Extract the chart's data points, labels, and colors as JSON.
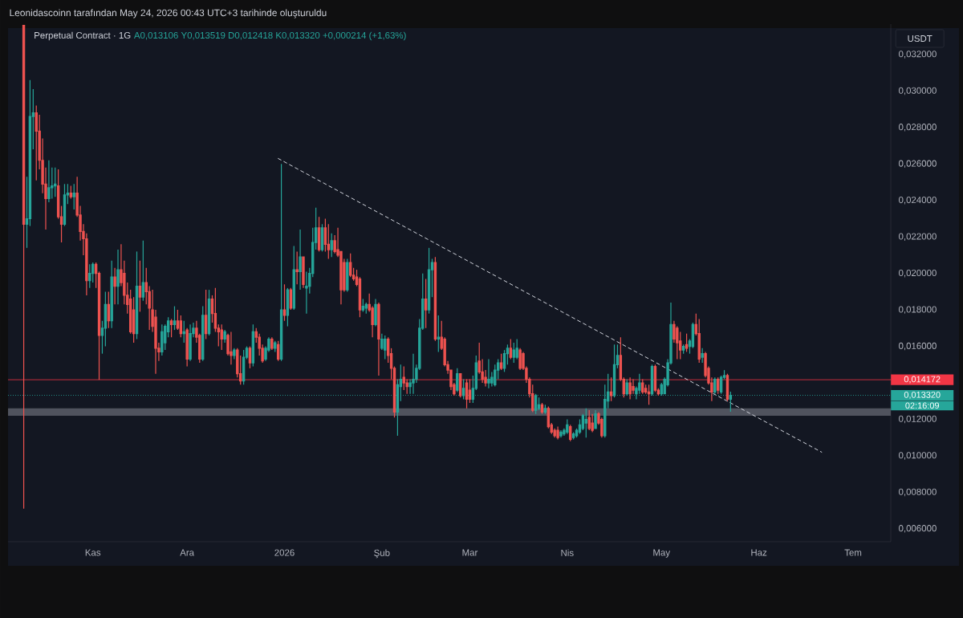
{
  "chart_data": {
    "type": "candlestick",
    "title": "Leonidascoinn tarafından May 24, 2026 00:43 UTC+3 tarihinde oluşturuldu",
    "subtitle": "Perpetual Contract · 1G",
    "ylabel": "USDT",
    "annotations": [
      "A0,013106 Y0,013519 D0,012418 K0,013320 +0,000214 (+1,63%)",
      "02:16:09"
    ],
    "colors": [
      "#ef5350",
      "#26a69a",
      "#26a69a",
      "#26a69a",
      "#ef5350",
      "#ef5350",
      "#ef5350",
      "#ef5350",
      "#26a69a",
      "#26a69a",
      "#26a69a",
      "#ef5350",
      "#ef5350",
      "#26a69a",
      "#26a69a",
      "#ef5350",
      "#26a69a",
      "#ef5350",
      "#ef5350",
      "#ef5350",
      "#ef5350",
      "#26a69a",
      "#26a69a",
      "#ef5350",
      "#ef5350",
      "#26a69a",
      "#26a69a",
      "#ef5350",
      "#26a69a",
      "#ef5350",
      "#26a69a",
      "#ef5350",
      "#ef5350",
      "#ef5350",
      "#ef5350",
      "#ef5350",
      "#26a69a",
      "#ef5350",
      "#26a69a",
      "#ef5350",
      "#ef5350",
      "#ef5350",
      "#ef5350",
      "#ef5350",
      "#26a69a",
      "#26a69a",
      "#26a69a",
      "#ef5350",
      "#26a69a",
      "#ef5350",
      "#ef5350",
      "#26a69a",
      "#ef5350",
      "#26a69a",
      "#26a69a",
      "#ef5350",
      "#ef5350",
      "#26a69a",
      "#ef5350",
      "#26a69a",
      "#ef5350",
      "#ef5350",
      "#ef5350",
      "#ef5350",
      "#26a69a",
      "#ef5350",
      "#ef5350",
      "#26a69a",
      "#ef5350",
      "#ef5350",
      "#26a69a",
      "#26a69a",
      "#ef5350",
      "#26a69a",
      "#ef5350",
      "#ef5350",
      "#ef5350",
      "#26a69a",
      "#26a69a",
      "#ef5350",
      "#26a69a",
      "#ef5350",
      "#26a69a",
      "#ef5350",
      "#26a69a",
      "#ef5350",
      "#26a69a",
      "#ef5350",
      "#26a69a",
      "#ef5350",
      "#26a69a",
      "#26a69a",
      "#26a69a",
      "#26a69a",
      "#ef5350",
      "#26a69a",
      "#ef5350",
      "#ef5350",
      "#26a69a",
      "#ef5350",
      "#ef5350",
      "#ef5350",
      "#ef5350",
      "#26a69a",
      "#ef5350",
      "#ef5350",
      "#ef5350",
      "#ef5350",
      "#26a69a",
      "#26a69a",
      "#ef5350",
      "#ef5350",
      "#26a69a",
      "#ef5350",
      "#26a69a",
      "#26a69a",
      "#ef5350",
      "#ef5350",
      "#ef5350",
      "#26a69a",
      "#26a69a",
      "#ef5350",
      "#ef5350",
      "#26a69a",
      "#26a69a",
      "#26a69a",
      "#26a69a",
      "#26a69a",
      "#ef5350",
      "#26a69a",
      "#26a69a",
      "#ef5350",
      "#26a69a",
      "#ef5350",
      "#ef5350",
      "#ef5350",
      "#ef5350",
      "#ef5350",
      "#26a69a",
      "#ef5350",
      "#26a69a",
      "#ef5350",
      "#ef5350",
      "#26a69a",
      "#26a69a",
      "#ef5350",
      "#ef5350",
      "#ef5350",
      "#26a69a",
      "#26a69a",
      "#26a69a",
      "#26a69a",
      "#ef5350",
      "#26a69a",
      "#26a69a",
      "#ef5350",
      "#26a69a",
      "#26a69a",
      "#ef5350",
      "#ef5350",
      "#ef5350",
      "#ef5350",
      "#ef5350",
      "#26a69a",
      "#26a69a",
      "#ef5350",
      "#26a69a",
      "#ef5350",
      "#ef5350",
      "#ef5350",
      "#ef5350",
      "#26a69a",
      "#26a69a",
      "#26a69a",
      "#ef5350",
      "#26a69a",
      "#26a69a",
      "#26a69a",
      "#26a69a",
      "#26a69a",
      "#ef5350",
      "#ef5350",
      "#26a69a",
      "#ef5350",
      "#ef5350",
      "#26a69a",
      "#26a69a",
      "#ef5350",
      "#26a69a",
      "#26a69a",
      "#ef5350",
      "#ef5350",
      "#26a69a",
      "#ef5350",
      "#ef5350",
      "#26a69a",
      "#26a69a",
      "#ef5350",
      "#ef5350",
      "#ef5350",
      "#26a69a",
      "#ef5350",
      "#ef5350",
      "#26a69a",
      "#26a69a",
      "#26a69a",
      "#26a69a",
      "#ef5350",
      "#ef5350",
      "#ef5350",
      "#26a69a",
      "#ef5350",
      "#26a69a",
      "#26a69a",
      "#ef5350",
      "#ef5350",
      "#26a69a",
      "#ef5350",
      "#ef5350",
      "#ef5350",
      "#26a69a",
      "#ef5350",
      "#26a69a",
      "#26a69a",
      "#ef5350",
      "#26a69a"
    ],
    "xlim": [
      "2025-10-05",
      "2026-07-13"
    ],
    "ylim": [
      0.00529,
      0.03367
    ],
    "xticks": [
      {
        "value": "2025-11-01",
        "label": "Kas"
      },
      {
        "value": "2025-12-01",
        "label": "Ara"
      },
      {
        "value": "2026-01-01",
        "label": "2026"
      },
      {
        "value": "2026-02-01",
        "label": "Şub"
      },
      {
        "value": "2026-03-01",
        "label": "Mar"
      },
      {
        "value": "2026-04-01",
        "label": "Nis"
      },
      {
        "value": "2026-05-01",
        "label": "May"
      },
      {
        "value": "2026-06-01",
        "label": "Haz"
      },
      {
        "value": "2026-07-01",
        "label": "Tem"
      }
    ],
    "yticks": [
      {
        "value": 0.006,
        "label": "0,006000"
      },
      {
        "value": 0.008,
        "label": "0,008000"
      },
      {
        "value": 0.01,
        "label": "0,010000"
      },
      {
        "value": 0.012,
        "label": "0,012000"
      },
      {
        "value": 0.016,
        "label": "0,016000"
      },
      {
        "value": 0.018,
        "label": "0,018000"
      },
      {
        "value": 0.02,
        "label": "0,020000"
      },
      {
        "value": 0.022,
        "label": "0,022000"
      },
      {
        "value": 0.024,
        "label": "0,024000"
      },
      {
        "value": 0.026,
        "label": "0,026000"
      },
      {
        "value": 0.028,
        "label": "0,028000"
      },
      {
        "value": 0.03,
        "label": "0,030000"
      },
      {
        "value": 0.032,
        "label": "0,032000"
      }
    ],
    "ref_lines": [
      {
        "axis": "y",
        "value": 0.014172,
        "label": "0,014172",
        "color": "#f23645",
        "line_style": "solid"
      },
      {
        "axis": "y",
        "value": 0.01332,
        "label": "0,013320",
        "color": "#26a69a",
        "line_style": "dotted"
      }
    ],
    "bands": [
      {
        "axis": "y",
        "from": 0.0122,
        "to": 0.0126,
        "color": "#50535e"
      }
    ],
    "series": [
      {
        "type": "line",
        "x": [
          "2025-12-30",
          "2026-06-21"
        ],
        "values": [
          0.0263,
          0.0102
        ],
        "color": "#d1d4dc",
        "line_style": "dashed"
      }
    ],
    "x": [
      "2025-10-10",
      "2025-10-11",
      "2025-10-12",
      "2025-10-13",
      "2025-10-14",
      "2025-10-15",
      "2025-10-16",
      "2025-10-17",
      "2025-10-18",
      "2025-10-19",
      "2025-10-20",
      "2025-10-21",
      "2025-10-22",
      "2025-10-23",
      "2025-10-24",
      "2025-10-25",
      "2025-10-26",
      "2025-10-27",
      "2025-10-28",
      "2025-10-29",
      "2025-10-30",
      "2025-10-31",
      "2025-11-01",
      "2025-11-02",
      "2025-11-03",
      "2025-11-04",
      "2025-11-05",
      "2025-11-06",
      "2025-11-07",
      "2025-11-08",
      "2025-11-09",
      "2025-11-10",
      "2025-11-11",
      "2025-11-12",
      "2025-11-13",
      "2025-11-14",
      "2025-11-15",
      "2025-11-16",
      "2025-11-17",
      "2025-11-18",
      "2025-11-19",
      "2025-11-20",
      "2025-11-21",
      "2025-11-22",
      "2025-11-23",
      "2025-11-24",
      "2025-11-25",
      "2025-11-26",
      "2025-11-27",
      "2025-11-28",
      "2025-11-29",
      "2025-11-30",
      "2025-12-01",
      "2025-12-02",
      "2025-12-03",
      "2025-12-04",
      "2025-12-05",
      "2025-12-06",
      "2025-12-07",
      "2025-12-08",
      "2025-12-09",
      "2025-12-10",
      "2025-12-11",
      "2025-12-12",
      "2025-12-13",
      "2025-12-14",
      "2025-12-15",
      "2025-12-16",
      "2025-12-17",
      "2025-12-18",
      "2025-12-19",
      "2025-12-20",
      "2025-12-21",
      "2025-12-22",
      "2025-12-23",
      "2025-12-24",
      "2025-12-25",
      "2025-12-26",
      "2025-12-27",
      "2025-12-28",
      "2025-12-29",
      "2025-12-30",
      "2025-12-31",
      "2026-01-01",
      "2026-01-02",
      "2026-01-03",
      "2026-01-04",
      "2026-01-05",
      "2026-01-06",
      "2026-01-07",
      "2026-01-08",
      "2026-01-09",
      "2026-01-10",
      "2026-01-11",
      "2026-01-12",
      "2026-01-13",
      "2026-01-14",
      "2026-01-15",
      "2026-01-16",
      "2026-01-17",
      "2026-01-18",
      "2026-01-19",
      "2026-01-20",
      "2026-01-21",
      "2026-01-22",
      "2026-01-23",
      "2026-01-24",
      "2026-01-25",
      "2026-01-26",
      "2026-01-27",
      "2026-01-28",
      "2026-01-29",
      "2026-01-30",
      "2026-01-31",
      "2026-02-01",
      "2026-02-02",
      "2026-02-03",
      "2026-02-04",
      "2026-02-05",
      "2026-02-06",
      "2026-02-07",
      "2026-02-08",
      "2026-02-09",
      "2026-02-10",
      "2026-02-11",
      "2026-02-12",
      "2026-02-13",
      "2026-02-14",
      "2026-02-15",
      "2026-02-16",
      "2026-02-17",
      "2026-02-18",
      "2026-02-19",
      "2026-02-20",
      "2026-02-21",
      "2026-02-22",
      "2026-02-23",
      "2026-02-24",
      "2026-02-25",
      "2026-02-26",
      "2026-02-27",
      "2026-02-28",
      "2026-03-01",
      "2026-03-02",
      "2026-03-03",
      "2026-03-04",
      "2026-03-05",
      "2026-03-06",
      "2026-03-07",
      "2026-03-08",
      "2026-03-09",
      "2026-03-10",
      "2026-03-11",
      "2026-03-12",
      "2026-03-13",
      "2026-03-14",
      "2026-03-15",
      "2026-03-16",
      "2026-03-17",
      "2026-03-18",
      "2026-03-19",
      "2026-03-20",
      "2026-03-21",
      "2026-03-22",
      "2026-03-23",
      "2026-03-24",
      "2026-03-25",
      "2026-03-26",
      "2026-03-27",
      "2026-03-28",
      "2026-03-29",
      "2026-03-30",
      "2026-03-31",
      "2026-04-01",
      "2026-04-02",
      "2026-04-03",
      "2026-04-04",
      "2026-04-05",
      "2026-04-06",
      "2026-04-07",
      "2026-04-08",
      "2026-04-09",
      "2026-04-10",
      "2026-04-11",
      "2026-04-12",
      "2026-04-13",
      "2026-04-14",
      "2026-04-15",
      "2026-04-16",
      "2026-04-17",
      "2026-04-18",
      "2026-04-19",
      "2026-04-20",
      "2026-04-21",
      "2026-04-22",
      "2026-04-23",
      "2026-04-24",
      "2026-04-25",
      "2026-04-26",
      "2026-04-27",
      "2026-04-28",
      "2026-04-29",
      "2026-04-30",
      "2026-05-01",
      "2026-05-02",
      "2026-05-03",
      "2026-05-04",
      "2026-05-05",
      "2026-05-06",
      "2026-05-07",
      "2026-05-08",
      "2026-05-09",
      "2026-05-10",
      "2026-05-11",
      "2026-05-12",
      "2026-05-13",
      "2026-05-14",
      "2026-05-15",
      "2026-05-16",
      "2026-05-17",
      "2026-05-18",
      "2026-05-19",
      "2026-05-20",
      "2026-05-21",
      "2026-05-22",
      "2026-05-23"
    ],
    "ohlc": [
      [
        0.0336,
        0.0336,
        0.0071,
        0.0227
      ],
      [
        0.0227,
        0.0253,
        0.0214,
        0.023
      ],
      [
        0.023,
        0.0306,
        0.0226,
        0.0286
      ],
      [
        0.0286,
        0.0301,
        0.0268,
        0.0288
      ],
      [
        0.0288,
        0.0292,
        0.0251,
        0.0278
      ],
      [
        0.0278,
        0.0287,
        0.0257,
        0.0262
      ],
      [
        0.0262,
        0.0274,
        0.0244,
        0.0249
      ],
      [
        0.0249,
        0.0258,
        0.0224,
        0.0241
      ],
      [
        0.0241,
        0.0262,
        0.0239,
        0.0247
      ],
      [
        0.0247,
        0.0258,
        0.0241,
        0.0248
      ],
      [
        0.0248,
        0.0258,
        0.0242,
        0.0249
      ],
      [
        0.0248,
        0.0257,
        0.023,
        0.0231
      ],
      [
        0.0231,
        0.0237,
        0.0217,
        0.0227
      ],
      [
        0.0227,
        0.0249,
        0.0226,
        0.0243
      ],
      [
        0.0243,
        0.0249,
        0.0238,
        0.0244
      ],
      [
        0.0244,
        0.0248,
        0.0241,
        0.0242
      ],
      [
        0.0242,
        0.0249,
        0.0235,
        0.0244
      ],
      [
        0.0244,
        0.0253,
        0.0231,
        0.0232
      ],
      [
        0.0232,
        0.0237,
        0.0218,
        0.0223
      ],
      [
        0.0223,
        0.0227,
        0.021,
        0.0219
      ],
      [
        0.0219,
        0.0222,
        0.0188,
        0.0196
      ],
      [
        0.0196,
        0.0205,
        0.0192,
        0.02
      ],
      [
        0.02,
        0.0206,
        0.0195,
        0.0205
      ],
      [
        0.0205,
        0.0206,
        0.0192,
        0.02
      ],
      [
        0.02,
        0.0201,
        0.014172,
        0.0166
      ],
      [
        0.0166,
        0.0174,
        0.0156,
        0.017
      ],
      [
        0.017,
        0.019,
        0.016,
        0.0183
      ],
      [
        0.0183,
        0.019,
        0.017,
        0.0174
      ],
      [
        0.0174,
        0.0207,
        0.017,
        0.0198
      ],
      [
        0.0198,
        0.0203,
        0.0183,
        0.0193
      ],
      [
        0.0193,
        0.0213,
        0.0183,
        0.0202
      ],
      [
        0.0202,
        0.0216,
        0.0193,
        0.0195
      ],
      [
        0.02,
        0.0207,
        0.0183,
        0.0188
      ],
      [
        0.0188,
        0.0195,
        0.0178,
        0.0183
      ],
      [
        0.0186,
        0.0191,
        0.0167,
        0.0168
      ],
      [
        0.018,
        0.0187,
        0.0162,
        0.0167
      ],
      [
        0.0167,
        0.0212,
        0.0164,
        0.0193
      ],
      [
        0.0193,
        0.0207,
        0.0179,
        0.0187
      ],
      [
        0.0187,
        0.0218,
        0.0185,
        0.0195
      ],
      [
        0.0195,
        0.0203,
        0.0183,
        0.019
      ],
      [
        0.019,
        0.0193,
        0.0169,
        0.0181
      ],
      [
        0.018,
        0.0191,
        0.0168,
        0.0171
      ],
      [
        0.0176,
        0.018,
        0.0145,
        0.0159
      ],
      [
        0.0159,
        0.0162,
        0.0152,
        0.0157
      ],
      [
        0.0157,
        0.0172,
        0.0155,
        0.0168
      ],
      [
        0.0162,
        0.0172,
        0.0158,
        0.0171
      ],
      [
        0.0168,
        0.0176,
        0.0165,
        0.0174
      ],
      [
        0.0174,
        0.0175,
        0.0165,
        0.0172
      ],
      [
        0.0172,
        0.0182,
        0.0169,
        0.0174
      ],
      [
        0.0174,
        0.018,
        0.0169,
        0.017
      ],
      [
        0.0174,
        0.0177,
        0.0165,
        0.0167
      ],
      [
        0.0167,
        0.0174,
        0.0162,
        0.0168
      ],
      [
        0.0169,
        0.017,
        0.0149,
        0.0153
      ],
      [
        0.0153,
        0.0172,
        0.0152,
        0.0167
      ],
      [
        0.0167,
        0.0173,
        0.0165,
        0.017
      ],
      [
        0.017,
        0.0174,
        0.0162,
        0.0165
      ],
      [
        0.0166,
        0.0167,
        0.0151,
        0.0153
      ],
      [
        0.0153,
        0.0182,
        0.0152,
        0.0177
      ],
      [
        0.0177,
        0.0191,
        0.0164,
        0.0167
      ],
      [
        0.0167,
        0.0191,
        0.0166,
        0.0186
      ],
      [
        0.0186,
        0.0188,
        0.0173,
        0.0178
      ],
      [
        0.0178,
        0.0192,
        0.0168,
        0.017
      ],
      [
        0.017,
        0.0172,
        0.016,
        0.0168
      ],
      [
        0.0169,
        0.0172,
        0.0158,
        0.0164
      ],
      [
        0.0164,
        0.0169,
        0.0162,
        0.0168
      ],
      [
        0.0166,
        0.0167,
        0.0155,
        0.0156
      ],
      [
        0.0157,
        0.0168,
        0.015,
        0.0155
      ],
      [
        0.0155,
        0.0159,
        0.0153,
        0.0158
      ],
      [
        0.0158,
        0.0159,
        0.0143,
        0.0145
      ],
      [
        0.0145,
        0.0155,
        0.0139,
        0.0141
      ],
      [
        0.0141,
        0.0158,
        0.0139,
        0.0154
      ],
      [
        0.0154,
        0.016,
        0.0153,
        0.0159
      ],
      [
        0.0159,
        0.016,
        0.0148,
        0.0151
      ],
      [
        0.0151,
        0.0172,
        0.0149,
        0.0168
      ],
      [
        0.0168,
        0.017,
        0.0162,
        0.0165
      ],
      [
        0.0165,
        0.0167,
        0.0155,
        0.0159
      ],
      [
        0.0159,
        0.0161,
        0.0151,
        0.0152
      ],
      [
        0.0153,
        0.016,
        0.0152,
        0.0159
      ],
      [
        0.0158,
        0.0165,
        0.0157,
        0.0164
      ],
      [
        0.0164,
        0.0165,
        0.0158,
        0.0159
      ],
      [
        0.0159,
        0.0163,
        0.0157,
        0.0162
      ],
      [
        0.0161,
        0.0163,
        0.0152,
        0.0153
      ],
      [
        0.0153,
        0.026,
        0.0152,
        0.018
      ],
      [
        0.018,
        0.0194,
        0.0174,
        0.0177
      ],
      [
        0.0177,
        0.0192,
        0.0171,
        0.0191
      ],
      [
        0.0191,
        0.0192,
        0.018,
        0.0181
      ],
      [
        0.0181,
        0.0215,
        0.018,
        0.0202
      ],
      [
        0.0202,
        0.0212,
        0.0194,
        0.0201
      ],
      [
        0.0201,
        0.0224,
        0.0191,
        0.0209
      ],
      [
        0.0209,
        0.0209,
        0.0192,
        0.0194
      ],
      [
        0.0192,
        0.0201,
        0.0178,
        0.0193
      ],
      [
        0.0193,
        0.0203,
        0.0189,
        0.02
      ],
      [
        0.02,
        0.0225,
        0.0198,
        0.0217
      ],
      [
        0.0217,
        0.0236,
        0.0213,
        0.0225
      ],
      [
        0.0225,
        0.0231,
        0.0212,
        0.0213
      ],
      [
        0.0213,
        0.0227,
        0.0212,
        0.0225
      ],
      [
        0.0225,
        0.023,
        0.0212,
        0.0216
      ],
      [
        0.0216,
        0.0227,
        0.0208,
        0.0213
      ],
      [
        0.0213,
        0.0222,
        0.0209,
        0.0218
      ],
      [
        0.0218,
        0.0221,
        0.0211,
        0.0212
      ],
      [
        0.0213,
        0.0225,
        0.0209,
        0.021
      ],
      [
        0.0212,
        0.0212,
        0.0183,
        0.0191
      ],
      [
        0.0206,
        0.0208,
        0.019,
        0.0191
      ],
      [
        0.0191,
        0.0208,
        0.019,
        0.0206
      ],
      [
        0.0206,
        0.0211,
        0.0198,
        0.0199
      ],
      [
        0.0199,
        0.0203,
        0.0196,
        0.0197
      ],
      [
        0.0198,
        0.0202,
        0.0193,
        0.0194
      ],
      [
        0.0197,
        0.0198,
        0.0176,
        0.018
      ],
      [
        0.018,
        0.0186,
        0.0179,
        0.0182
      ],
      [
        0.0181,
        0.0184,
        0.0178,
        0.0183
      ],
      [
        0.0183,
        0.0189,
        0.0179,
        0.018
      ],
      [
        0.0181,
        0.0182,
        0.0165,
        0.0172
      ],
      [
        0.0172,
        0.0186,
        0.0171,
        0.0183
      ],
      [
        0.0183,
        0.0184,
        0.0144,
        0.0164
      ],
      [
        0.0159,
        0.0167,
        0.0158,
        0.0164
      ],
      [
        0.0158,
        0.0166,
        0.0153,
        0.0164
      ],
      [
        0.0164,
        0.0165,
        0.0151,
        0.0155
      ],
      [
        0.0156,
        0.0159,
        0.0142,
        0.0148
      ],
      [
        0.0148,
        0.0149,
        0.0121,
        0.0124
      ],
      [
        0.0124,
        0.0142,
        0.0111,
        0.0139
      ],
      [
        0.0138,
        0.015,
        0.013,
        0.0142
      ],
      [
        0.0143,
        0.0149,
        0.0136,
        0.014
      ],
      [
        0.014,
        0.0142,
        0.0134,
        0.0138
      ],
      [
        0.0138,
        0.0142,
        0.0134,
        0.014
      ],
      [
        0.014,
        0.0156,
        0.0134,
        0.0142
      ],
      [
        0.0142,
        0.015,
        0.014,
        0.0148
      ],
      [
        0.0148,
        0.0175,
        0.0147,
        0.017
      ],
      [
        0.017,
        0.02,
        0.0169,
        0.0186
      ],
      [
        0.0186,
        0.0197,
        0.017,
        0.018
      ],
      [
        0.018,
        0.0214,
        0.0178,
        0.0202
      ],
      [
        0.0202,
        0.0208,
        0.0187,
        0.0206
      ],
      [
        0.0206,
        0.0209,
        0.0163,
        0.0164
      ],
      [
        0.0164,
        0.0177,
        0.0157,
        0.0165
      ],
      [
        0.0165,
        0.0174,
        0.0158,
        0.0159
      ],
      [
        0.0164,
        0.0165,
        0.0149,
        0.015
      ],
      [
        0.015,
        0.0152,
        0.0145,
        0.0147
      ],
      [
        0.0147,
        0.0147,
        0.0136,
        0.0138
      ],
      [
        0.0139,
        0.014,
        0.0133,
        0.0134
      ],
      [
        0.0136,
        0.0148,
        0.0135,
        0.0145
      ],
      [
        0.0145,
        0.0145,
        0.0132,
        0.0133
      ],
      [
        0.0133,
        0.0142,
        0.0131,
        0.0137
      ],
      [
        0.014,
        0.0142,
        0.0126,
        0.0131
      ],
      [
        0.0136,
        0.0142,
        0.0129,
        0.0131
      ],
      [
        0.0131,
        0.0144,
        0.0129,
        0.0137
      ],
      [
        0.0137,
        0.0155,
        0.0136,
        0.0151
      ],
      [
        0.0152,
        0.0162,
        0.0145,
        0.0146
      ],
      [
        0.0146,
        0.0153,
        0.014,
        0.0142
      ],
      [
        0.0143,
        0.0147,
        0.0138,
        0.014
      ],
      [
        0.014,
        0.0153,
        0.0137,
        0.0142
      ],
      [
        0.014,
        0.0146,
        0.0138,
        0.0143
      ],
      [
        0.0139,
        0.015,
        0.0138,
        0.0147
      ],
      [
        0.0147,
        0.0153,
        0.0142,
        0.0151
      ],
      [
        0.0151,
        0.0156,
        0.0147,
        0.0148
      ],
      [
        0.0148,
        0.0158,
        0.0146,
        0.0156
      ],
      [
        0.0156,
        0.0161,
        0.015,
        0.0159
      ],
      [
        0.0159,
        0.0164,
        0.0153,
        0.0154
      ],
      [
        0.0154,
        0.0162,
        0.0151,
        0.0158
      ],
      [
        0.0154,
        0.0164,
        0.0153,
        0.0159
      ],
      [
        0.0158,
        0.0159,
        0.0147,
        0.0148
      ],
      [
        0.0156,
        0.0157,
        0.0147,
        0.0148
      ],
      [
        0.0148,
        0.0149,
        0.014,
        0.0142
      ],
      [
        0.0142,
        0.0143,
        0.0132,
        0.0134
      ],
      [
        0.0134,
        0.0139,
        0.0124,
        0.0125
      ],
      [
        0.0125,
        0.0134,
        0.0123,
        0.0133
      ],
      [
        0.0126,
        0.0132,
        0.0125,
        0.0128
      ],
      [
        0.0128,
        0.0129,
        0.0123,
        0.0124
      ],
      [
        0.0124,
        0.0128,
        0.0123,
        0.0126
      ],
      [
        0.0126,
        0.0127,
        0.0115,
        0.0116
      ],
      [
        0.0117,
        0.0118,
        0.0112,
        0.0113
      ],
      [
        0.0114,
        0.0115,
        0.011,
        0.0111
      ],
      [
        0.0114,
        0.0116,
        0.0109,
        0.011
      ],
      [
        0.0111,
        0.0114,
        0.011,
        0.0113
      ],
      [
        0.0112,
        0.0115,
        0.0111,
        0.0114
      ],
      [
        0.0113,
        0.012,
        0.0112,
        0.0117
      ],
      [
        0.0116,
        0.0117,
        0.0108,
        0.0109
      ],
      [
        0.011,
        0.0113,
        0.0109,
        0.0112
      ],
      [
        0.0111,
        0.0115,
        0.011,
        0.0114
      ],
      [
        0.0113,
        0.012,
        0.0112,
        0.0117
      ],
      [
        0.0115,
        0.0123,
        0.0114,
        0.0122
      ],
      [
        0.0118,
        0.0126,
        0.011,
        0.012
      ],
      [
        0.0121,
        0.0125,
        0.0114,
        0.0115
      ],
      [
        0.0118,
        0.0123,
        0.0113,
        0.0114
      ],
      [
        0.0115,
        0.0125,
        0.0115,
        0.0123
      ],
      [
        0.0123,
        0.0124,
        0.0117,
        0.0118
      ],
      [
        0.012,
        0.0121,
        0.011,
        0.0111
      ],
      [
        0.0111,
        0.0139,
        0.011,
        0.0131
      ],
      [
        0.013,
        0.0145,
        0.0126,
        0.0135
      ],
      [
        0.0135,
        0.0143,
        0.013,
        0.0133
      ],
      [
        0.0133,
        0.0161,
        0.0132,
        0.015
      ],
      [
        0.015,
        0.0161,
        0.0148,
        0.0155
      ],
      [
        0.0155,
        0.0165,
        0.0141,
        0.0142
      ],
      [
        0.0142,
        0.0143,
        0.0132,
        0.0134
      ],
      [
        0.0134,
        0.0142,
        0.0133,
        0.014
      ],
      [
        0.014,
        0.0143,
        0.0131,
        0.0134
      ],
      [
        0.0138,
        0.0142,
        0.0134,
        0.0136
      ],
      [
        0.0134,
        0.0138,
        0.0131,
        0.0137
      ],
      [
        0.0136,
        0.0145,
        0.0134,
        0.014
      ],
      [
        0.014,
        0.0142,
        0.0134,
        0.0135
      ],
      [
        0.0137,
        0.0139,
        0.0134,
        0.0135
      ],
      [
        0.0135,
        0.0139,
        0.0128,
        0.0134
      ],
      [
        0.0134,
        0.015,
        0.0133,
        0.0149
      ],
      [
        0.0149,
        0.015,
        0.0135,
        0.0136
      ],
      [
        0.0136,
        0.0137,
        0.0133,
        0.0134
      ],
      [
        0.0134,
        0.014,
        0.0133,
        0.0139
      ],
      [
        0.0134,
        0.0143,
        0.0134,
        0.0142
      ],
      [
        0.0139,
        0.0153,
        0.0138,
        0.0151
      ],
      [
        0.0151,
        0.0184,
        0.015,
        0.0172
      ],
      [
        0.0172,
        0.0174,
        0.0162,
        0.0164
      ],
      [
        0.017,
        0.0171,
        0.0153,
        0.0162
      ],
      [
        0.0163,
        0.0168,
        0.0153,
        0.0158
      ],
      [
        0.0158,
        0.0161,
        0.0156,
        0.016
      ],
      [
        0.0161,
        0.0167,
        0.0157,
        0.0159
      ],
      [
        0.016,
        0.0164,
        0.0156,
        0.0163
      ],
      [
        0.016,
        0.0173,
        0.0159,
        0.0172
      ],
      [
        0.0172,
        0.0178,
        0.0166,
        0.0167
      ],
      [
        0.0167,
        0.0175,
        0.0151,
        0.0153
      ],
      [
        0.0154,
        0.0159,
        0.0151,
        0.0156
      ],
      [
        0.0156,
        0.0157,
        0.0143,
        0.0144
      ],
      [
        0.0148,
        0.0149,
        0.0139,
        0.014
      ],
      [
        0.014,
        0.0143,
        0.013,
        0.0135
      ],
      [
        0.0135,
        0.0143,
        0.0134,
        0.0142
      ],
      [
        0.0142,
        0.0143,
        0.0134,
        0.0136
      ],
      [
        0.0135,
        0.0144,
        0.0134,
        0.0143
      ],
      [
        0.0143,
        0.0147,
        0.0142,
        0.0144
      ],
      [
        0.0144,
        0.0145,
        0.013,
        0.013106
      ],
      [
        0.013106,
        0.013519,
        0.012418,
        0.01332
      ]
    ]
  }
}
